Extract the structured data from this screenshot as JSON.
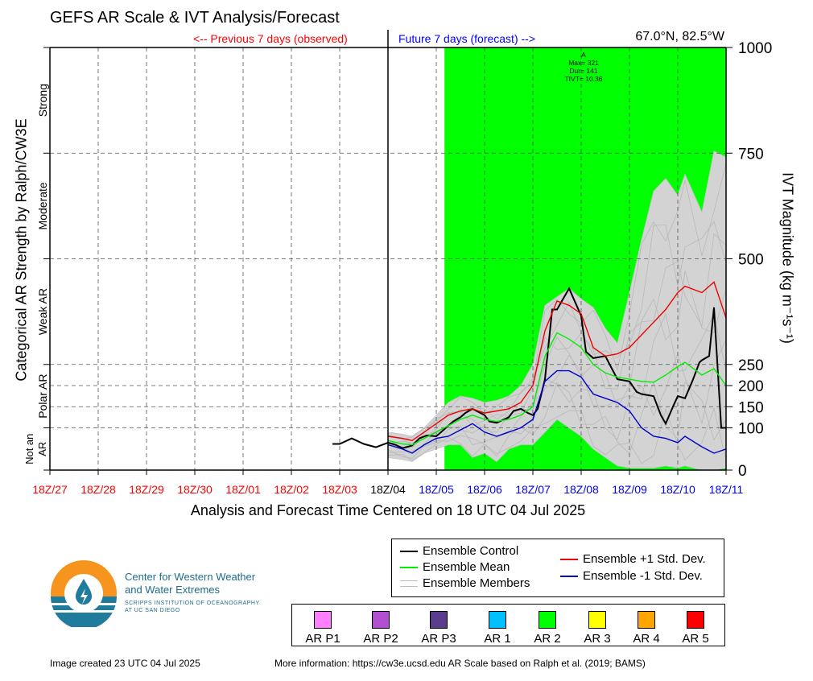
{
  "header": {
    "title": "GEFS AR Scale & IVT Analysis/Forecast",
    "location": "67.0°N, 82.5°W",
    "previous_label": "<-- Previous 7 days (observed)",
    "future_label": "Future 7 days (forecast) -->"
  },
  "axes": {
    "x_title": "Analysis and Forecast Time Centered on 18 UTC 04 Jul 2025",
    "y_left_title": "Categorical AR Strength by Ralph/CW3E",
    "y_right_title": "IVT Magnitude (kg m⁻¹s⁻¹)"
  },
  "annotation": {
    "lines": [
      "A",
      "Max= 321",
      "Dur= 141",
      "TIVT= 10.36"
    ]
  },
  "legend": {
    "control": "Ensemble Control",
    "mean": "Ensemble Mean",
    "members": "Ensemble Members",
    "plus_std": "Ensemble +1 Std. Dev.",
    "minus_std": "Ensemble -1 Std. Dev."
  },
  "ar_scale": [
    {
      "label": "AR P1",
      "color": "#ff80ff"
    },
    {
      "label": "AR P2",
      "color": "#b050d0"
    },
    {
      "label": "AR P3",
      "color": "#5a3c8c"
    },
    {
      "label": "AR 1",
      "color": "#00bfff"
    },
    {
      "label": "AR 2",
      "color": "#00ff00"
    },
    {
      "label": "AR 3",
      "color": "#ffff00"
    },
    {
      "label": "AR 4",
      "color": "#ffa500"
    },
    {
      "label": "AR 5",
      "color": "#ff0000"
    }
  ],
  "logo": {
    "org_name_1": "Center for Western Weather",
    "org_name_2": "and Water Extremes",
    "org_sub_1": "SCRIPPS INSTITUTION OF OCEANOGRAPHY",
    "org_sub_2": "AT UC SAN DIEGO"
  },
  "footer": {
    "created": "Image created 23 UTC 04 Jul 2025",
    "info": "More information: https://cw3e.ucsd.edu AR Scale based on Ralph et al. (2019; BAMS)"
  },
  "chart_data": {
    "type": "line",
    "x_unit": "days relative to 18Z/04 Jul 2025",
    "xlim": [
      -7,
      7
    ],
    "ylim": [
      0,
      1000
    ],
    "grid": true,
    "x_ticks": [
      {
        "x": -7,
        "label": "18Z/27",
        "color": "#ff0000"
      },
      {
        "x": -6,
        "label": "18Z/28",
        "color": "#ff0000"
      },
      {
        "x": -5,
        "label": "18Z/29",
        "color": "#ff0000"
      },
      {
        "x": -4,
        "label": "18Z/30",
        "color": "#ff0000"
      },
      {
        "x": -3,
        "label": "18Z/01",
        "color": "#ff0000"
      },
      {
        "x": -2,
        "label": "18Z/02",
        "color": "#ff0000"
      },
      {
        "x": -1,
        "label": "18Z/03",
        "color": "#ff0000"
      },
      {
        "x": 0,
        "label": "18Z/04",
        "color": "#000000"
      },
      {
        "x": 1,
        "label": "18Z/05",
        "color": "#0000ff"
      },
      {
        "x": 2,
        "label": "18Z/06",
        "color": "#0000ff"
      },
      {
        "x": 3,
        "label": "18Z/07",
        "color": "#0000ff"
      },
      {
        "x": 4,
        "label": "18Z/08",
        "color": "#0000ff"
      },
      {
        "x": 5,
        "label": "18Z/09",
        "color": "#0000ff"
      },
      {
        "x": 6,
        "label": "18Z/10",
        "color": "#0000ff"
      },
      {
        "x": 7,
        "label": "18Z/11",
        "color": "#0000ff"
      }
    ],
    "y_ticks": [
      0,
      100,
      150,
      200,
      250,
      500,
      750,
      1000
    ],
    "categories": [
      {
        "label": "Not an AR",
        "from": 0,
        "to": 100
      },
      {
        "label": "Polar AR",
        "from": 100,
        "to": 250
      },
      {
        "label": "Weak AR",
        "from": 250,
        "to": 500
      },
      {
        "label": "Moderate",
        "from": 500,
        "to": 750
      },
      {
        "label": "Strong",
        "from": 750,
        "to": 1000
      }
    ],
    "ar_period": {
      "start": 1.17,
      "end": 7,
      "color": "#00ff00",
      "category": "AR 2"
    },
    "series": [
      {
        "name": "Ensemble Control",
        "color": "#000000",
        "x": [
          -1.15,
          -1.0,
          -0.75,
          -0.5,
          -0.25,
          0.0,
          0.15,
          0.3,
          0.5,
          0.65,
          0.8,
          1.0,
          1.2,
          1.35,
          1.5,
          1.6,
          1.75,
          2.0,
          2.1,
          2.25,
          2.5,
          2.6,
          2.75,
          2.9,
          3.0,
          3.1,
          3.25,
          3.4,
          3.5,
          3.75,
          4.0,
          4.1,
          4.25,
          4.5,
          4.75,
          5.0,
          5.15,
          5.25,
          5.5,
          5.65,
          5.75,
          5.9,
          6.0,
          6.15,
          6.3,
          6.45,
          6.5,
          6.65,
          6.75,
          6.9,
          7.0
        ],
        "y": [
          62,
          62,
          75,
          62,
          54,
          65,
          60,
          52,
          58,
          75,
          82,
          80,
          100,
          115,
          125,
          135,
          145,
          130,
          115,
          112,
          125,
          140,
          145,
          135,
          130,
          145,
          215,
          380,
          380,
          430,
          365,
          280,
          265,
          270,
          215,
          210,
          185,
          180,
          175,
          130,
          110,
          150,
          175,
          170,
          210,
          255,
          260,
          270,
          385,
          100,
          100
        ]
      },
      {
        "name": "Ensemble Mean",
        "color": "#00ee00",
        "x": [
          0.0,
          0.3,
          0.5,
          0.75,
          1.0,
          1.25,
          1.5,
          1.75,
          2.0,
          2.25,
          2.5,
          2.75,
          3.0,
          3.25,
          3.5,
          3.75,
          4.0,
          4.25,
          4.5,
          4.75,
          5.0,
          5.25,
          5.5,
          5.75,
          6.0,
          6.15,
          6.5,
          6.75,
          7.0
        ],
        "y": [
          70,
          62,
          60,
          75,
          90,
          105,
          120,
          130,
          120,
          115,
          120,
          130,
          150,
          270,
          325,
          310,
          290,
          250,
          230,
          220,
          215,
          210,
          208,
          225,
          245,
          255,
          225,
          240,
          200
        ]
      },
      {
        "name": "Ensemble +1 Std. Dev.",
        "color": "#ee0000",
        "x": [
          0.0,
          0.3,
          0.5,
          0.75,
          1.0,
          1.25,
          1.5,
          1.75,
          2.0,
          2.25,
          2.5,
          2.75,
          3.0,
          3.25,
          3.5,
          3.75,
          4.0,
          4.25,
          4.5,
          4.75,
          5.0,
          5.25,
          5.5,
          5.75,
          6.0,
          6.15,
          6.5,
          6.75,
          7.0
        ],
        "y": [
          80,
          75,
          70,
          90,
          110,
          130,
          140,
          145,
          135,
          140,
          145,
          160,
          200,
          330,
          400,
          390,
          370,
          290,
          270,
          275,
          290,
          320,
          350,
          380,
          420,
          435,
          420,
          445,
          360
        ]
      },
      {
        "name": "Ensemble -1 Std. Dev.",
        "color": "#0000cc",
        "x": [
          0.0,
          0.3,
          0.5,
          0.75,
          1.0,
          1.25,
          1.5,
          1.75,
          2.0,
          2.25,
          2.5,
          2.75,
          3.0,
          3.25,
          3.5,
          3.75,
          4.0,
          4.25,
          4.5,
          4.75,
          5.0,
          5.25,
          5.5,
          5.75,
          6.0,
          6.15,
          6.5,
          6.75,
          7.0
        ],
        "y": [
          60,
          50,
          40,
          60,
          75,
          80,
          95,
          110,
          90,
          80,
          90,
          100,
          120,
          210,
          235,
          235,
          220,
          180,
          170,
          160,
          140,
          100,
          80,
          75,
          65,
          80,
          55,
          40,
          50
        ]
      }
    ],
    "members_band": {
      "name": "Ensemble Members",
      "x": [
        0.0,
        0.3,
        0.5,
        0.75,
        1.0,
        1.25,
        1.5,
        1.75,
        2.0,
        2.25,
        2.5,
        2.75,
        3.0,
        3.25,
        3.5,
        3.75,
        4.0,
        4.25,
        4.5,
        4.75,
        5.0,
        5.25,
        5.5,
        5.75,
        6.0,
        6.15,
        6.5,
        6.75,
        7.0
      ],
      "upper": [
        90,
        85,
        80,
        100,
        130,
        160,
        175,
        170,
        160,
        165,
        175,
        200,
        250,
        390,
        410,
        430,
        405,
        385,
        335,
        300,
        420,
        545,
        660,
        690,
        650,
        700,
        610,
        755,
        740
      ],
      "lower": [
        30,
        25,
        20,
        40,
        50,
        60,
        60,
        30,
        40,
        20,
        50,
        60,
        60,
        90,
        120,
        100,
        80,
        50,
        30,
        10,
        5,
        5,
        5,
        10,
        5,
        10,
        0,
        0,
        5
      ]
    }
  }
}
